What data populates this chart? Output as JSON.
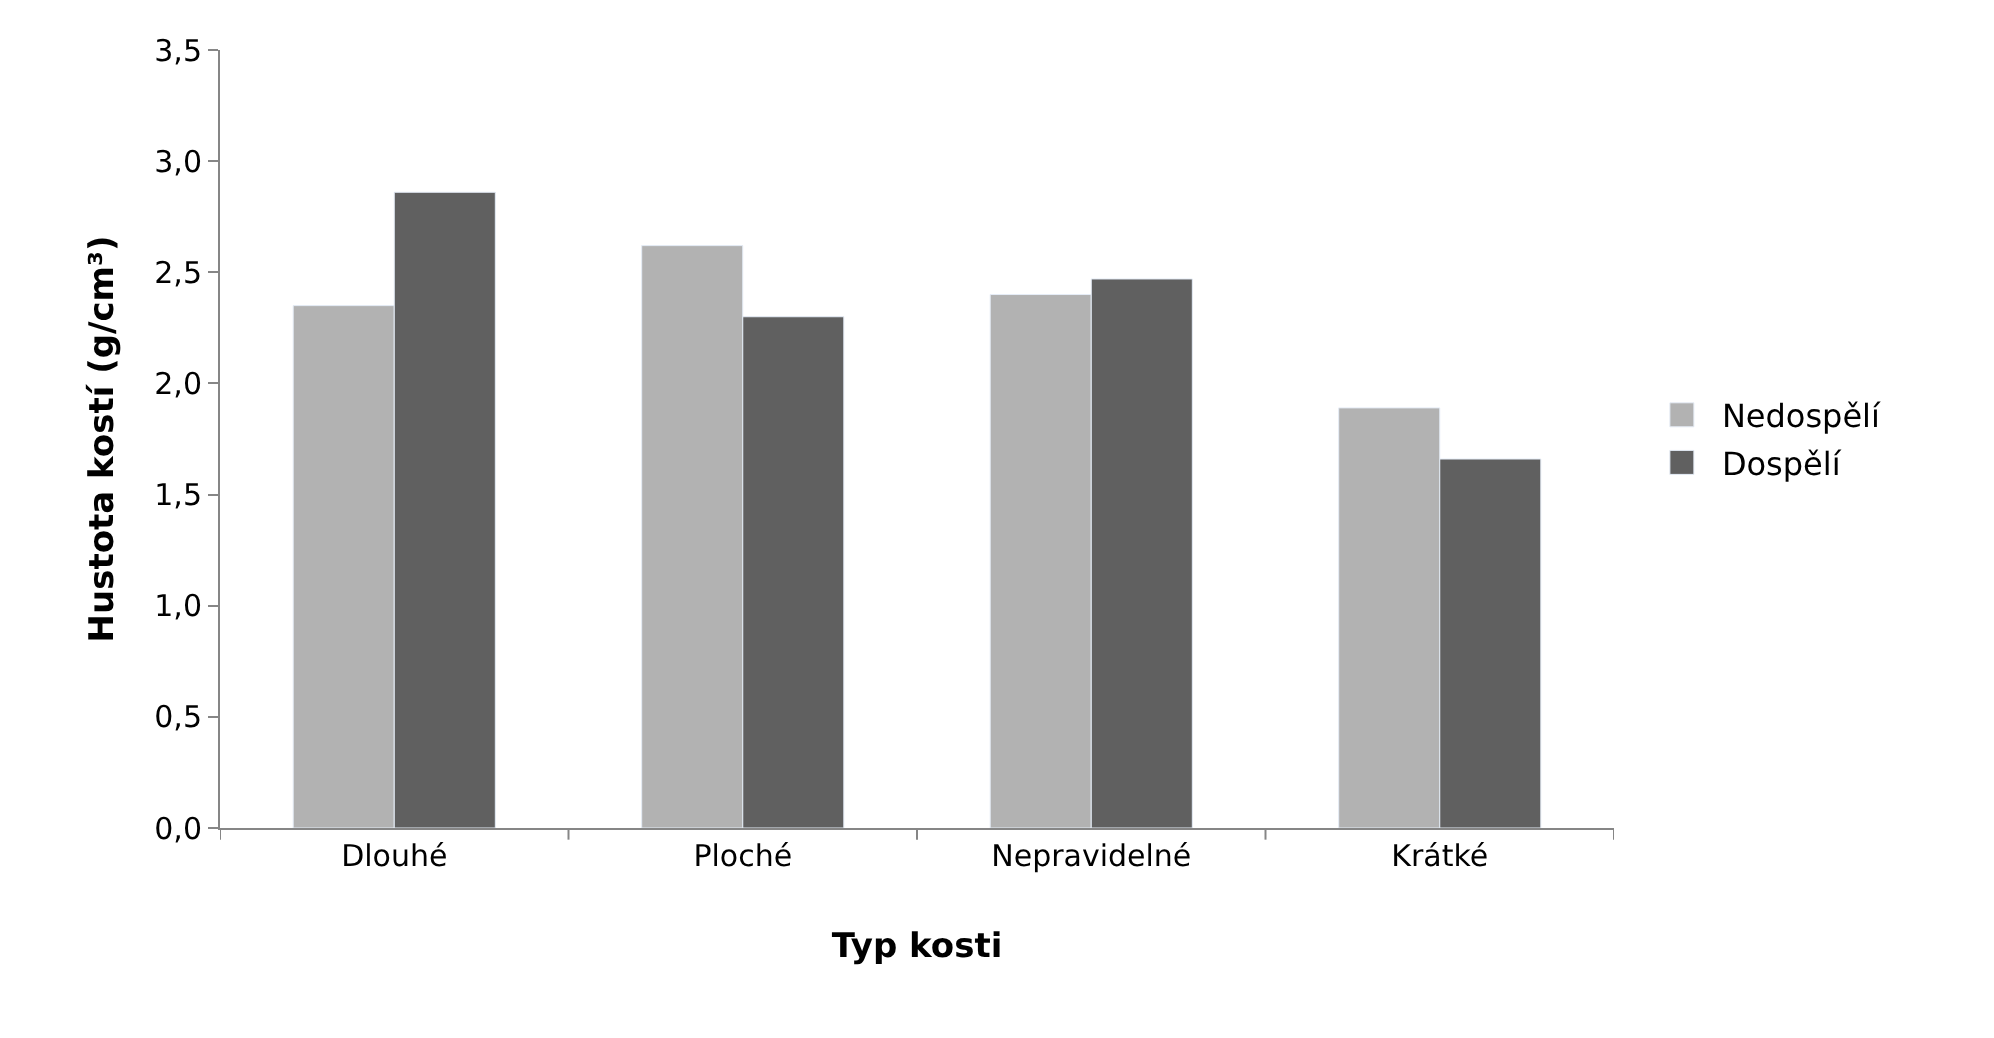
{
  "chart_data": {
    "type": "bar",
    "xlabel": "Typ kosti",
    "ylabel": "Hustota kostí (g/cm³)",
    "categories": [
      "Dlouhé",
      "Ploché",
      "Nepravidelné",
      "Krátké"
    ],
    "series": [
      {
        "name": "Nedospělí",
        "color": "#b2b2b2",
        "values": [
          2.35,
          2.62,
          2.4,
          1.89
        ]
      },
      {
        "name": "Dospělí",
        "color": "#606060",
        "values": [
          2.86,
          2.3,
          2.47,
          1.66
        ]
      }
    ],
    "ylim": [
      0,
      3.5
    ],
    "yticks": [
      {
        "value": 0,
        "label": "0,0"
      },
      {
        "value": 0.5,
        "label": "0,5"
      },
      {
        "value": 1,
        "label": "1,0"
      },
      {
        "value": 1.5,
        "label": "1,5"
      },
      {
        "value": 2,
        "label": "2,0"
      },
      {
        "value": 2.5,
        "label": "2,5"
      },
      {
        "value": 3,
        "label": "3,0"
      },
      {
        "value": 3.5,
        "label": "3,5"
      }
    ],
    "legend": "right"
  }
}
